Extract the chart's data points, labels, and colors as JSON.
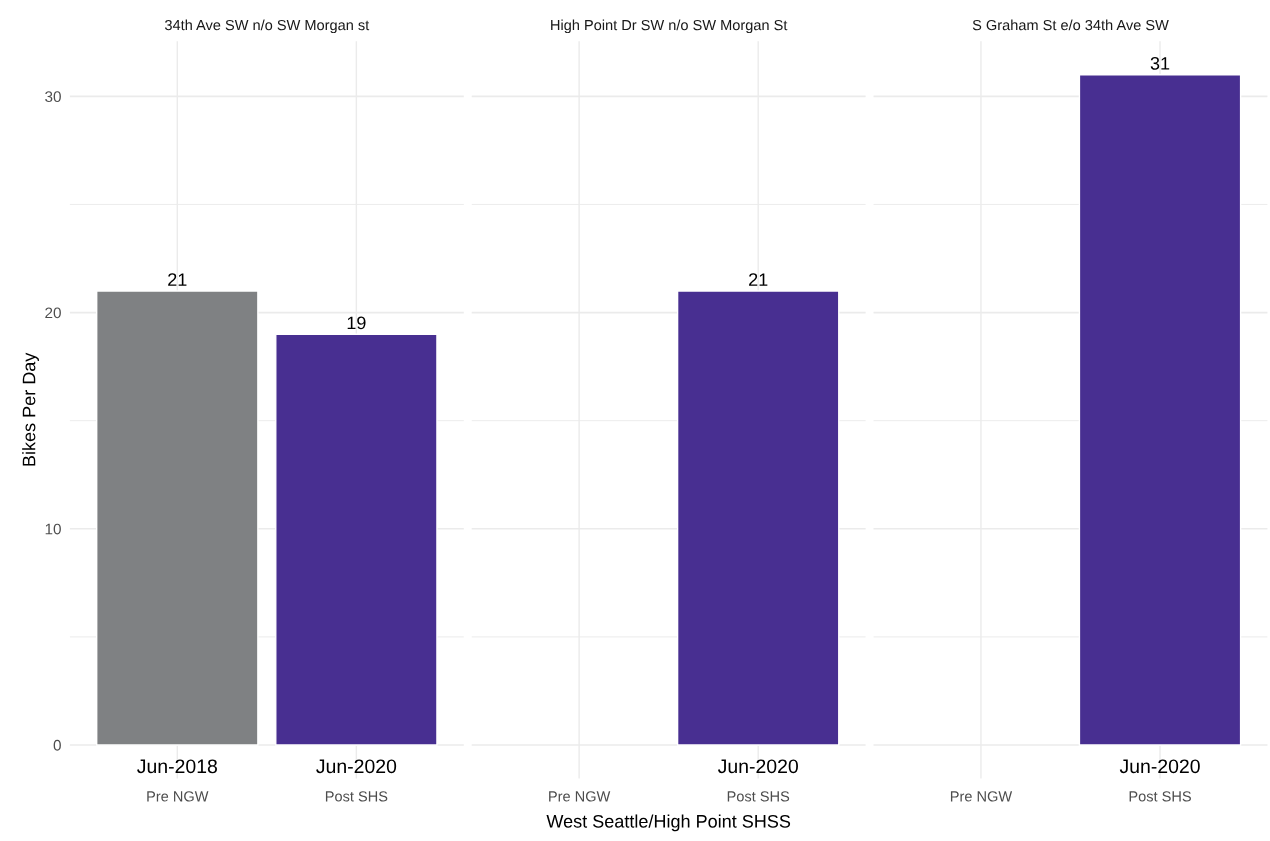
{
  "chart_data": [
    {
      "type": "bar",
      "title": "34th Ave SW n/o SW Morgan st",
      "ylabel": "Bikes Per Day",
      "categories": [
        "Jun-2018\nPre NGW",
        "Jun-2020\nPost SHS"
      ],
      "values": [
        21,
        19
      ],
      "colors": [
        "#7f8183",
        "#482f91"
      ],
      "data_labels": true,
      "ylim": [
        -1.55,
        32.55
      ],
      "yticks": [
        0,
        10,
        20,
        30
      ],
      "grid": true,
      "legend": false
    },
    {
      "type": "bar",
      "title": "High Point Dr SW n/o SW Morgan St",
      "xlabel": "West Seattle/High Point SHSS",
      "categories": [
        "Pre NGW",
        "Jun-2020\nPost SHS"
      ],
      "values": [
        null,
        21
      ],
      "colors": [
        "#7f8183",
        "#482f91"
      ],
      "data_labels": true,
      "ylim": [
        -1.55,
        32.55
      ],
      "yticks": [
        0,
        10,
        20,
        30
      ],
      "grid": true,
      "legend": false,
      "tick_labels": "x"
    },
    {
      "type": "bar",
      "title": "S Graham St e/o 34th Ave SW",
      "categories": [
        "Pre NGW",
        "Jun-2020\nPost SHS"
      ],
      "values": [
        null,
        31
      ],
      "colors": [
        "#7f8183",
        "#482f91"
      ],
      "data_labels": true,
      "ylim": [
        -1.55,
        32.55
      ],
      "yticks": [
        0,
        10,
        20,
        30
      ],
      "grid": true,
      "legend": false,
      "tick_labels": "x"
    }
  ]
}
